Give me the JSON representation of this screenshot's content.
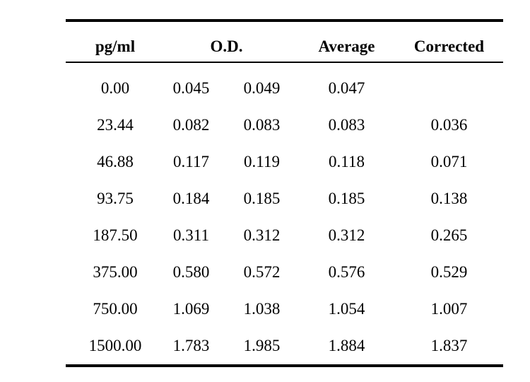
{
  "table": {
    "headers": {
      "concentration": "pg/ml",
      "od": "O.D.",
      "average": "Average",
      "corrected": "Corrected"
    },
    "rows": [
      {
        "conc": "0.00",
        "od1": "0.045",
        "od2": "0.049",
        "avg": "0.047",
        "corr": ""
      },
      {
        "conc": "23.44",
        "od1": "0.082",
        "od2": "0.083",
        "avg": "0.083",
        "corr": "0.036"
      },
      {
        "conc": "46.88",
        "od1": "0.117",
        "od2": "0.119",
        "avg": "0.118",
        "corr": "0.071"
      },
      {
        "conc": "93.75",
        "od1": "0.184",
        "od2": "0.185",
        "avg": "0.185",
        "corr": "0.138"
      },
      {
        "conc": "187.50",
        "od1": "0.311",
        "od2": "0.312",
        "avg": "0.312",
        "corr": "0.265"
      },
      {
        "conc": "375.00",
        "od1": "0.580",
        "od2": "0.572",
        "avg": "0.576",
        "corr": "0.529"
      },
      {
        "conc": "750.00",
        "od1": "1.069",
        "od2": "1.038",
        "avg": "1.054",
        "corr": "1.007"
      },
      {
        "conc": "1500.00",
        "od1": "1.783",
        "od2": "1.985",
        "avg": "1.884",
        "corr": "1.837"
      }
    ]
  }
}
